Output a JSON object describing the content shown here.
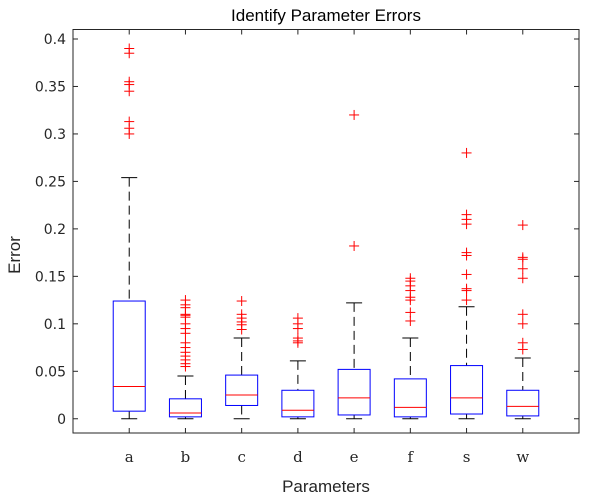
{
  "chart_data": {
    "type": "boxplot",
    "title": "Identify Parameter Errors",
    "xlabel": "Parameters",
    "ylabel": "Error",
    "ylim": [
      -0.015,
      0.41
    ],
    "yticks": [
      0,
      0.05,
      0.1,
      0.15,
      0.2,
      0.25,
      0.3,
      0.35,
      0.4
    ],
    "ytick_labels": [
      "0",
      "0.05",
      "0.1",
      "0.15",
      "0.2",
      "0.25",
      "0.3",
      "0.35",
      "0.4"
    ],
    "grid": false,
    "categories": [
      "a",
      "b",
      "c",
      "d",
      "e",
      "f",
      "s",
      "w"
    ],
    "boxes": [
      {
        "label": "a",
        "whisker_low": 0,
        "q1": 0.008,
        "median": 0.034,
        "q3": 0.124,
        "whisker_high": 0.254,
        "outliers": [
          0.39,
          0.385,
          0.355,
          0.352,
          0.345,
          0.313,
          0.306,
          0.3
        ]
      },
      {
        "label": "b",
        "whisker_low": 0,
        "q1": 0.002,
        "median": 0.006,
        "q3": 0.021,
        "whisker_high": 0.045,
        "outliers": [
          0.125,
          0.12,
          0.117,
          0.11,
          0.109,
          0.107,
          0.1,
          0.095,
          0.09,
          0.08,
          0.075,
          0.07,
          0.066,
          0.062,
          0.058,
          0.055
        ]
      },
      {
        "label": "c",
        "whisker_low": 0,
        "q1": 0.014,
        "median": 0.025,
        "q3": 0.046,
        "whisker_high": 0.085,
        "outliers": [
          0.124,
          0.11,
          0.106,
          0.102,
          0.099,
          0.094
        ]
      },
      {
        "label": "d",
        "whisker_low": 0,
        "q1": 0.002,
        "median": 0.009,
        "q3": 0.03,
        "whisker_high": 0.061,
        "outliers": [
          0.106,
          0.1,
          0.095,
          0.085,
          0.082,
          0.08
        ]
      },
      {
        "label": "e",
        "whisker_low": 0,
        "q1": 0.004,
        "median": 0.022,
        "q3": 0.052,
        "whisker_high": 0.122,
        "outliers": [
          0.32,
          0.182
        ]
      },
      {
        "label": "f",
        "whisker_low": 0,
        "q1": 0.002,
        "median": 0.012,
        "q3": 0.042,
        "whisker_high": 0.085,
        "outliers": [
          0.148,
          0.145,
          0.14,
          0.135,
          0.128,
          0.125,
          0.112,
          0.103
        ]
      },
      {
        "label": "s",
        "whisker_low": 0,
        "q1": 0.005,
        "median": 0.022,
        "q3": 0.056,
        "whisker_high": 0.118,
        "outliers": [
          0.28,
          0.215,
          0.21,
          0.205,
          0.175,
          0.172,
          0.152,
          0.137,
          0.135,
          0.125
        ]
      },
      {
        "label": "w",
        "whisker_low": 0,
        "q1": 0.003,
        "median": 0.013,
        "q3": 0.03,
        "whisker_high": 0.064,
        "outliers": [
          0.204,
          0.17,
          0.168,
          0.158,
          0.148,
          0.11,
          0.1,
          0.08,
          0.073
        ]
      }
    ],
    "colors": {
      "box": "#0000ff",
      "median": "#ff0000",
      "outlier": "#ff0000",
      "whisker": "#000000",
      "axes": "#262626"
    }
  }
}
